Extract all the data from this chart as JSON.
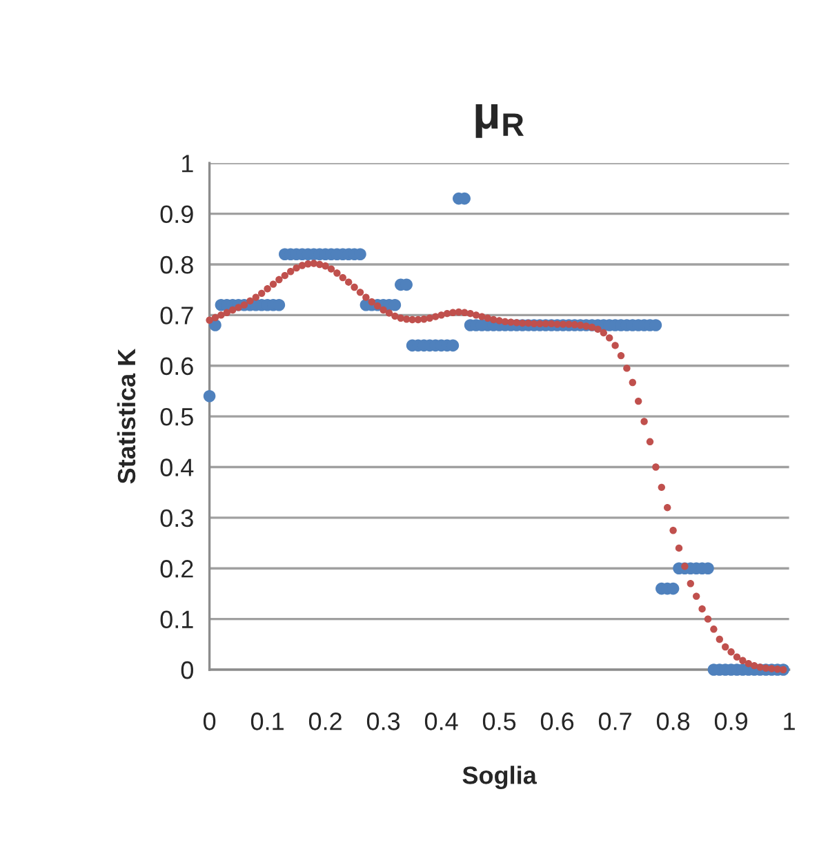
{
  "chart_data": {
    "type": "scatter",
    "title": "μ$_{R}$",
    "xlabel": "Soglia",
    "ylabel": "Statistica K",
    "x": [
      0,
      0.01,
      0.02,
      0.03,
      0.04,
      0.05,
      0.06,
      0.07,
      0.08,
      0.09,
      0.1,
      0.11,
      0.12,
      0.13,
      0.14,
      0.15,
      0.16,
      0.17,
      0.18,
      0.19,
      0.2,
      0.21,
      0.22,
      0.23,
      0.24,
      0.25,
      0.26,
      0.27,
      0.28,
      0.29,
      0.3,
      0.31,
      0.32,
      0.33,
      0.34,
      0.35,
      0.36,
      0.37,
      0.38,
      0.39,
      0.4,
      0.41,
      0.42,
      0.43,
      0.44,
      0.45,
      0.46,
      0.47,
      0.48,
      0.49,
      0.5,
      0.51,
      0.52,
      0.53,
      0.54,
      0.55,
      0.56,
      0.57,
      0.58,
      0.59,
      0.6,
      0.61,
      0.62,
      0.63,
      0.64,
      0.65,
      0.66,
      0.67,
      0.68,
      0.69,
      0.7,
      0.71,
      0.72,
      0.73,
      0.74,
      0.75,
      0.76,
      0.77,
      0.78,
      0.79,
      0.8,
      0.81,
      0.82,
      0.83,
      0.84,
      0.85,
      0.86,
      0.87,
      0.88,
      0.89,
      0.9,
      0.91,
      0.92,
      0.93,
      0.94,
      0.95,
      0.96,
      0.97,
      0.98,
      0.99
    ],
    "series": [
      {
        "color": "#4f81bd",
        "values": [
          0.54,
          0.68,
          0.72,
          0.72,
          0.72,
          0.72,
          0.72,
          0.72,
          0.72,
          0.72,
          0.72,
          0.72,
          0.72,
          0.82,
          0.82,
          0.82,
          0.82,
          0.82,
          0.82,
          0.82,
          0.82,
          0.82,
          0.82,
          0.82,
          0.82,
          0.82,
          0.82,
          0.72,
          0.72,
          0.72,
          0.72,
          0.72,
          0.72,
          0.76,
          0.76,
          0.64,
          0.64,
          0.64,
          0.64,
          0.64,
          0.64,
          0.64,
          0.64,
          0.93,
          0.93,
          0.68,
          0.68,
          0.68,
          0.68,
          0.68,
          0.68,
          0.68,
          0.68,
          0.68,
          0.68,
          0.68,
          0.68,
          0.68,
          0.68,
          0.68,
          0.68,
          0.68,
          0.68,
          0.68,
          0.68,
          0.68,
          0.68,
          0.68,
          0.68,
          0.68,
          0.68,
          0.68,
          0.68,
          0.68,
          0.68,
          0.68,
          0.68,
          0.68,
          0.16,
          0.16,
          0.16,
          0.2,
          0.2,
          0.2,
          0.2,
          0.2,
          0.2,
          0,
          0,
          0,
          0,
          0,
          0,
          0,
          0,
          0,
          0,
          0,
          0,
          0
        ]
      },
      {
        "color": "#c0504d",
        "values": [
          0.69,
          0.695,
          0.7,
          0.705,
          0.71,
          0.715,
          0.72,
          0.728,
          0.735,
          0.743,
          0.752,
          0.761,
          0.77,
          0.778,
          0.786,
          0.793,
          0.798,
          0.801,
          0.802,
          0.8,
          0.797,
          0.791,
          0.783,
          0.774,
          0.765,
          0.755,
          0.745,
          0.735,
          0.726,
          0.718,
          0.71,
          0.704,
          0.698,
          0.694,
          0.692,
          0.691,
          0.691,
          0.692,
          0.694,
          0.697,
          0.7,
          0.703,
          0.705,
          0.706,
          0.705,
          0.703,
          0.7,
          0.697,
          0.694,
          0.691,
          0.689,
          0.687,
          0.686,
          0.685,
          0.684,
          0.684,
          0.683,
          0.683,
          0.683,
          0.683,
          0.682,
          0.682,
          0.682,
          0.681,
          0.68,
          0.678,
          0.676,
          0.672,
          0.665,
          0.655,
          0.64,
          0.62,
          0.595,
          0.567,
          0.53,
          0.49,
          0.45,
          0.4,
          0.36,
          0.32,
          0.275,
          0.24,
          0.204,
          0.17,
          0.145,
          0.12,
          0.1,
          0.08,
          0.06,
          0.045,
          0.035,
          0.025,
          0.018,
          0.012,
          0.008,
          0.005,
          0.003,
          0.002,
          0.001,
          0
        ]
      }
    ],
    "xlim": [
      0,
      1
    ],
    "xticks": [
      0,
      0.1,
      0.2,
      0.3,
      0.4,
      0.5,
      0.6,
      0.7,
      0.8,
      0.9,
      1
    ],
    "ylim": [
      0,
      1
    ],
    "yticks": [
      0,
      0.1,
      0.2,
      0.3,
      0.4,
      0.5,
      0.6,
      0.7,
      0.8,
      0.9,
      1
    ],
    "grid": "y",
    "marker": "circle"
  }
}
